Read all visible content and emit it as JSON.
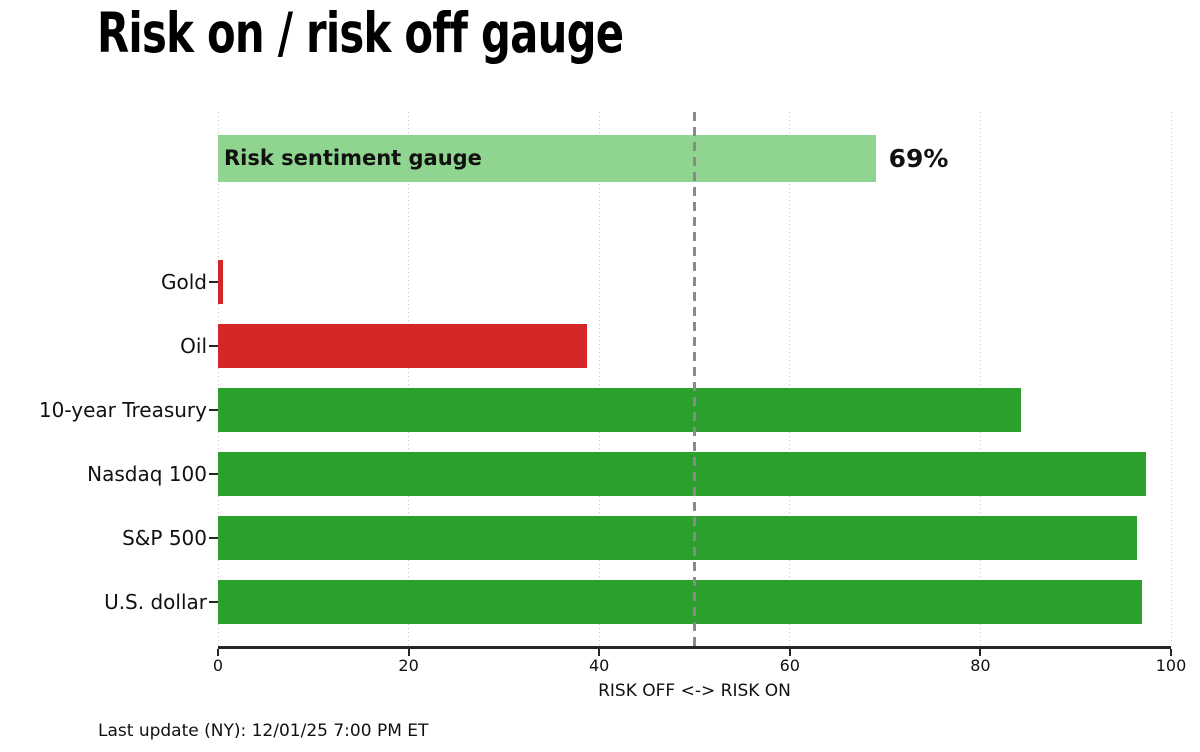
{
  "title": "Risk on / risk off gauge",
  "footer": "Last update (NY): 12/01/25 7:00 PM ET",
  "chart_data": {
    "type": "bar",
    "orientation": "horizontal",
    "title": "Risk on / risk off gauge",
    "xlabel": "RISK OFF <-> RISK ON",
    "ylabel": "",
    "xlim": [
      0,
      100
    ],
    "xticks": [
      0,
      20,
      40,
      60,
      80,
      100
    ],
    "grid": "vertical dotted lines at every x tick",
    "midline_value": 50,
    "gauge_series": {
      "label": "Risk sentiment gauge",
      "value": 69,
      "value_label": "69%",
      "color": "#8fd48f"
    },
    "categories": [
      "Gold",
      "Oil",
      "10-year Treasury",
      "Nasdaq 100",
      "S&P 500",
      "U.S. dollar"
    ],
    "values": [
      0.5,
      38.7,
      84.3,
      97.4,
      96.4,
      97.0
    ],
    "bar_colors": [
      "#d62728",
      "#d62728",
      "#2ca02c",
      "#2ca02c",
      "#2ca02c",
      "#2ca02c"
    ]
  },
  "colors": {
    "risk_on_green": "#2ca02c",
    "risk_off_red": "#d62728",
    "gauge_light_green": "#8fd48f",
    "midline_gray": "#8a8a8a",
    "grid_gray": "#c8c8c8",
    "axis_dark": "#262626"
  }
}
